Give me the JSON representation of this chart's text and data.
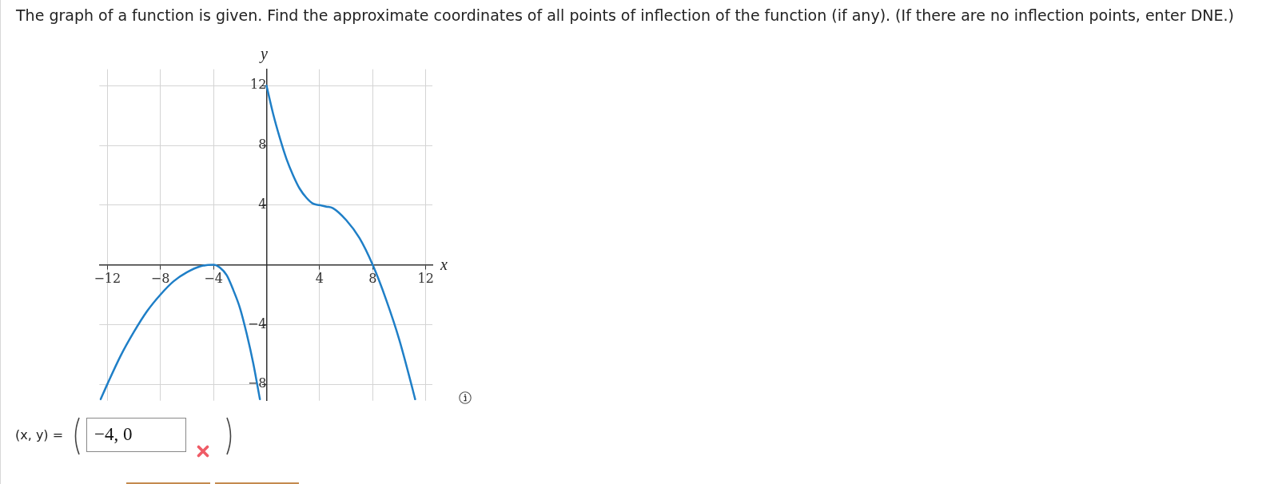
{
  "chart_data": {
    "type": "line",
    "title": "The graph of a function is given. Find the approximate coordinates of all points of inflection of the function (if any). (If there are no inflection points, enter DNE.)",
    "xlabel": "x",
    "ylabel": "y",
    "x": [
      -12.5,
      -12,
      -11,
      -10,
      -9,
      -8,
      -7,
      -6,
      -5,
      -4,
      -3.5,
      -3,
      -2.5,
      -2,
      -1.5,
      -1,
      -0.5,
      -0.25,
      0,
      0.5,
      1,
      1.5,
      2,
      2.5,
      3,
      3.5,
      4,
      4.5,
      5,
      6,
      7,
      8,
      9,
      10,
      11,
      11.2
    ],
    "series": [
      {
        "color": "#1f7fc7",
        "values": [
          -9,
          -8,
          -6.1,
          -4.5,
          -3.1,
          -2,
          -1.1,
          -0.5,
          -0.1,
          0,
          -0.2,
          -0.7,
          -1.7,
          -2.9,
          -4.6,
          -6.6,
          -9,
          null,
          12,
          10.1,
          8.5,
          7.1,
          6,
          5.1,
          4.5,
          4.1,
          4,
          3.9,
          3.8,
          3,
          1.8,
          0,
          -2.3,
          -5,
          -8.3,
          -9
        ]
      }
    ],
    "xlim": [
      -12.6,
      12.5
    ],
    "ylim": [
      -9.1,
      13.1
    ],
    "xticks": [
      {
        "value": -12,
        "label": "−12"
      },
      {
        "value": -8,
        "label": "−8"
      },
      {
        "value": -4,
        "label": "−4"
      },
      4,
      8,
      12
    ],
    "yticks": [
      {
        "value": -8,
        "label": "−8"
      },
      {
        "value": -4,
        "label": "−4"
      },
      4,
      8,
      12
    ],
    "grid": true,
    "annotations": [
      "(x, y) =",
      "−4, 0"
    ]
  }
}
